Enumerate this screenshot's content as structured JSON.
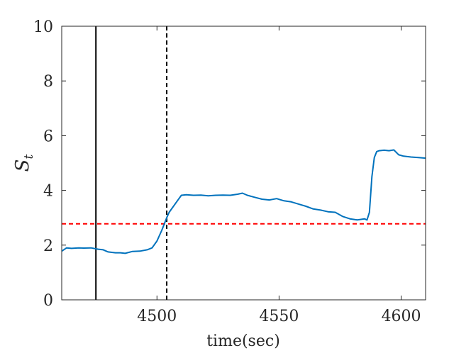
{
  "chart_data": {
    "type": "line",
    "xlabel": "time(sec)",
    "ylabel": {
      "main": "S",
      "subscript": "t"
    },
    "xlim": [
      4461,
      4610
    ],
    "ylim": [
      0,
      10
    ],
    "xticks": [
      4500,
      4550,
      4600
    ],
    "yticks": [
      0,
      2,
      4,
      6,
      8,
      10
    ],
    "grid": false,
    "series": [
      {
        "color": "#0072BD",
        "x": [
          4461,
          4463,
          4465,
          4468,
          4470,
          4473,
          4476,
          4478,
          4480,
          4483,
          4485,
          4487,
          4490,
          4493,
          4496,
          4498,
          4500,
          4502,
          4504,
          4505,
          4507,
          4509,
          4510,
          4512,
          4515,
          4518,
          4521,
          4524,
          4527,
          4530,
          4533,
          4535,
          4537,
          4540,
          4543,
          4546,
          4549,
          4552,
          4555,
          4558,
          4561,
          4564,
          4567,
          4570,
          4573,
          4576,
          4579,
          4582,
          4585,
          4586,
          4587,
          4588,
          4589,
          4590,
          4591,
          4593,
          4595,
          4597,
          4599,
          4601,
          4604,
          4607,
          4610
        ],
        "y": [
          1.78,
          1.9,
          1.88,
          1.9,
          1.89,
          1.9,
          1.85,
          1.83,
          1.75,
          1.72,
          1.72,
          1.7,
          1.77,
          1.78,
          1.83,
          1.9,
          2.15,
          2.55,
          3.0,
          3.2,
          3.45,
          3.7,
          3.82,
          3.84,
          3.82,
          3.83,
          3.8,
          3.82,
          3.83,
          3.82,
          3.86,
          3.9,
          3.82,
          3.75,
          3.68,
          3.65,
          3.7,
          3.62,
          3.58,
          3.5,
          3.42,
          3.32,
          3.28,
          3.22,
          3.2,
          3.05,
          2.96,
          2.92,
          2.96,
          2.92,
          3.2,
          4.5,
          5.2,
          5.42,
          5.45,
          5.47,
          5.45,
          5.48,
          5.3,
          5.25,
          5.22,
          5.2,
          5.18
        ]
      }
    ],
    "reference_lines": [
      {
        "orientation": "vertical",
        "x": 4475,
        "style": "solid",
        "color": "#000000"
      },
      {
        "orientation": "vertical",
        "x": 4504,
        "style": "dashed",
        "color": "#000000"
      },
      {
        "orientation": "horizontal",
        "y": 2.78,
        "style": "dashed",
        "color": "#FF0000"
      }
    ]
  }
}
